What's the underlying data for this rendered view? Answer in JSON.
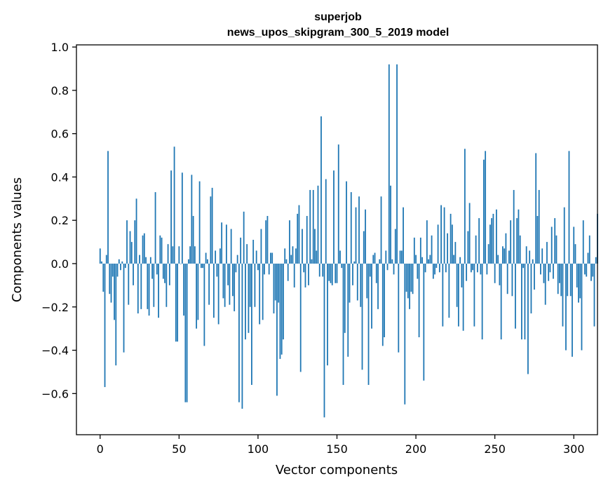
{
  "chart_data": {
    "type": "bar",
    "title": [
      "superjob",
      "news_upos_skipgram_300_5_2019 model"
    ],
    "xlabel": "Vector components",
    "ylabel": "Components values",
    "xlim": [
      -15,
      315
    ],
    "ylim": [
      -0.79,
      1.01
    ],
    "xticks": [
      0,
      50,
      100,
      150,
      200,
      250,
      300
    ],
    "xtick_labels": [
      "0",
      "50",
      "100",
      "150",
      "200",
      "250",
      "300"
    ],
    "yticks": [
      -0.6,
      -0.4,
      -0.2,
      0.0,
      0.2,
      0.4,
      0.6,
      0.8,
      1.0
    ],
    "ytick_labels": [
      "−0.6",
      "−0.4",
      "−0.2",
      "0.0",
      "0.2",
      "0.4",
      "0.6",
      "0.8",
      "1.0"
    ],
    "grid": false,
    "legend": "none",
    "colors": {
      "bar": "#1f77b4",
      "axis": "#000000",
      "background": "#ffffff"
    },
    "x_start": 0,
    "values": [
      0.07,
      0.01,
      -0.13,
      -0.57,
      0.04,
      0.52,
      -0.14,
      -0.18,
      -0.06,
      -0.26,
      -0.47,
      -0.06,
      0.02,
      -0.03,
      0.01,
      -0.41,
      -0.02,
      0.2,
      -0.19,
      0.15,
      0.1,
      -0.1,
      0.2,
      0.3,
      -0.23,
      0.04,
      -0.21,
      0.13,
      0.14,
      0.03,
      -0.21,
      -0.24,
      0.03,
      -0.07,
      -0.2,
      0.33,
      -0.05,
      -0.25,
      0.13,
      0.12,
      -0.07,
      -0.09,
      -0.2,
      0.09,
      -0.1,
      0.43,
      0.08,
      0.54,
      -0.36,
      -0.36,
      0.08,
      0.0,
      0.42,
      -0.24,
      -0.64,
      -0.64,
      0.02,
      0.08,
      0.41,
      0.22,
      0.08,
      -0.3,
      -0.26,
      0.38,
      -0.02,
      -0.02,
      -0.38,
      0.05,
      0.02,
      -0.19,
      0.31,
      0.35,
      -0.25,
      0.06,
      -0.06,
      -0.28,
      0.07,
      0.19,
      -0.16,
      -0.2,
      0.18,
      -0.1,
      -0.19,
      0.16,
      -0.15,
      -0.22,
      -0.04,
      0.04,
      -0.64,
      0.12,
      -0.67,
      0.24,
      -0.35,
      0.09,
      -0.32,
      -0.2,
      -0.56,
      0.11,
      -0.2,
      0.06,
      -0.03,
      -0.28,
      0.16,
      -0.26,
      -0.05,
      0.2,
      0.22,
      -0.05,
      0.05,
      0.05,
      -0.23,
      -0.17,
      -0.61,
      -0.18,
      -0.44,
      -0.42,
      -0.35,
      0.07,
      0.02,
      -0.08,
      0.2,
      0.04,
      0.08,
      -0.11,
      0.07,
      0.23,
      0.27,
      -0.5,
      0.16,
      -0.04,
      -0.11,
      0.22,
      -0.1,
      0.34,
      0.02,
      0.34,
      0.16,
      0.06,
      0.36,
      -0.06,
      0.68,
      -0.06,
      -0.71,
      0.39,
      -0.47,
      -0.08,
      -0.09,
      -0.1,
      0.43,
      -0.09,
      -0.09,
      0.55,
      0.06,
      -0.02,
      -0.56,
      -0.32,
      0.38,
      -0.43,
      -0.18,
      0.33,
      -0.1,
      0.01,
      0.26,
      -0.17,
      0.31,
      -0.2,
      -0.49,
      0.15,
      0.25,
      -0.16,
      -0.56,
      -0.06,
      -0.3,
      0.04,
      0.05,
      -0.09,
      -0.21,
      0.02,
      0.31,
      -0.38,
      -0.34,
      0.06,
      -0.03,
      0.92,
      0.36,
      0.02,
      -0.05,
      0.16,
      0.92,
      -0.41,
      0.06,
      0.06,
      0.26,
      -0.65,
      -0.13,
      -0.16,
      -0.21,
      -0.13,
      -0.14,
      0.12,
      0.04,
      -0.07,
      -0.34,
      0.12,
      0.03,
      -0.54,
      -0.04,
      0.2,
      0.02,
      0.04,
      0.13,
      -0.07,
      -0.05,
      -0.02,
      0.18,
      -0.04,
      0.27,
      -0.29,
      0.26,
      -0.04,
      0.14,
      -0.25,
      0.23,
      0.18,
      0.04,
      0.1,
      -0.2,
      -0.29,
      0.03,
      -0.11,
      -0.31,
      0.53,
      -0.08,
      0.15,
      0.28,
      -0.04,
      -0.03,
      -0.29,
      0.13,
      -0.04,
      0.21,
      -0.05,
      -0.35,
      0.48,
      0.52,
      -0.05,
      0.09,
      0.18,
      0.21,
      0.23,
      -0.09,
      0.25,
      0.04,
      -0.1,
      -0.35,
      0.08,
      0.07,
      0.14,
      -0.14,
      0.06,
      0.2,
      -0.15,
      0.34,
      -0.3,
      0.21,
      0.25,
      0.13,
      -0.35,
      -0.02,
      -0.35,
      0.08,
      -0.51,
      0.06,
      -0.23,
      0.02,
      -0.12,
      0.51,
      0.22,
      0.34,
      -0.05,
      0.07,
      -0.09,
      -0.19,
      0.1,
      -0.08,
      -0.04,
      0.17,
      -0.07,
      0.21,
      0.13,
      -0.14,
      -0.09,
      -0.15,
      -0.29,
      0.26,
      -0.4,
      -0.15,
      0.52,
      -0.15,
      -0.43,
      0.17,
      0.09,
      -0.11,
      -0.18,
      -0.16,
      -0.4,
      0.2,
      -0.05,
      -0.06,
      0.05,
      0.13,
      -0.08,
      -0.06,
      -0.29,
      0.03,
      0.23
    ]
  }
}
